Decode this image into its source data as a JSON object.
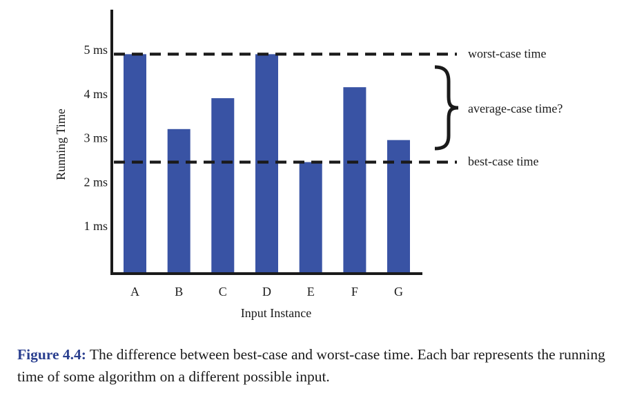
{
  "colors": {
    "bar": "#3953a4",
    "axis": "#1a1a1a",
    "caption_label": "#2a3f8f"
  },
  "chart_data": {
    "type": "bar",
    "categories": [
      "A",
      "B",
      "C",
      "D",
      "E",
      "F",
      "G"
    ],
    "values": [
      4.9,
      3.2,
      3.9,
      4.9,
      2.45,
      4.15,
      2.95
    ],
    "ylabel": "Running Time",
    "xlabel": "Input Instance",
    "ylim": [
      0,
      5.5
    ],
    "yticks": [
      1,
      2,
      3,
      4,
      5
    ],
    "ytick_labels": [
      "1 ms",
      "2 ms",
      "3 ms",
      "4 ms",
      "5 ms"
    ],
    "grid": false,
    "reference_lines": [
      {
        "value": 4.9,
        "label": "worst-case time",
        "style": "dashed"
      },
      {
        "value": 2.45,
        "label": "best-case time",
        "style": "dashed"
      }
    ],
    "bracket_label": "average-case time?"
  },
  "caption": {
    "label": "Figure 4.4:",
    "text": " The difference between best-case and worst-case time. Each bar represents the running time of some algorithm on a different possible input."
  }
}
